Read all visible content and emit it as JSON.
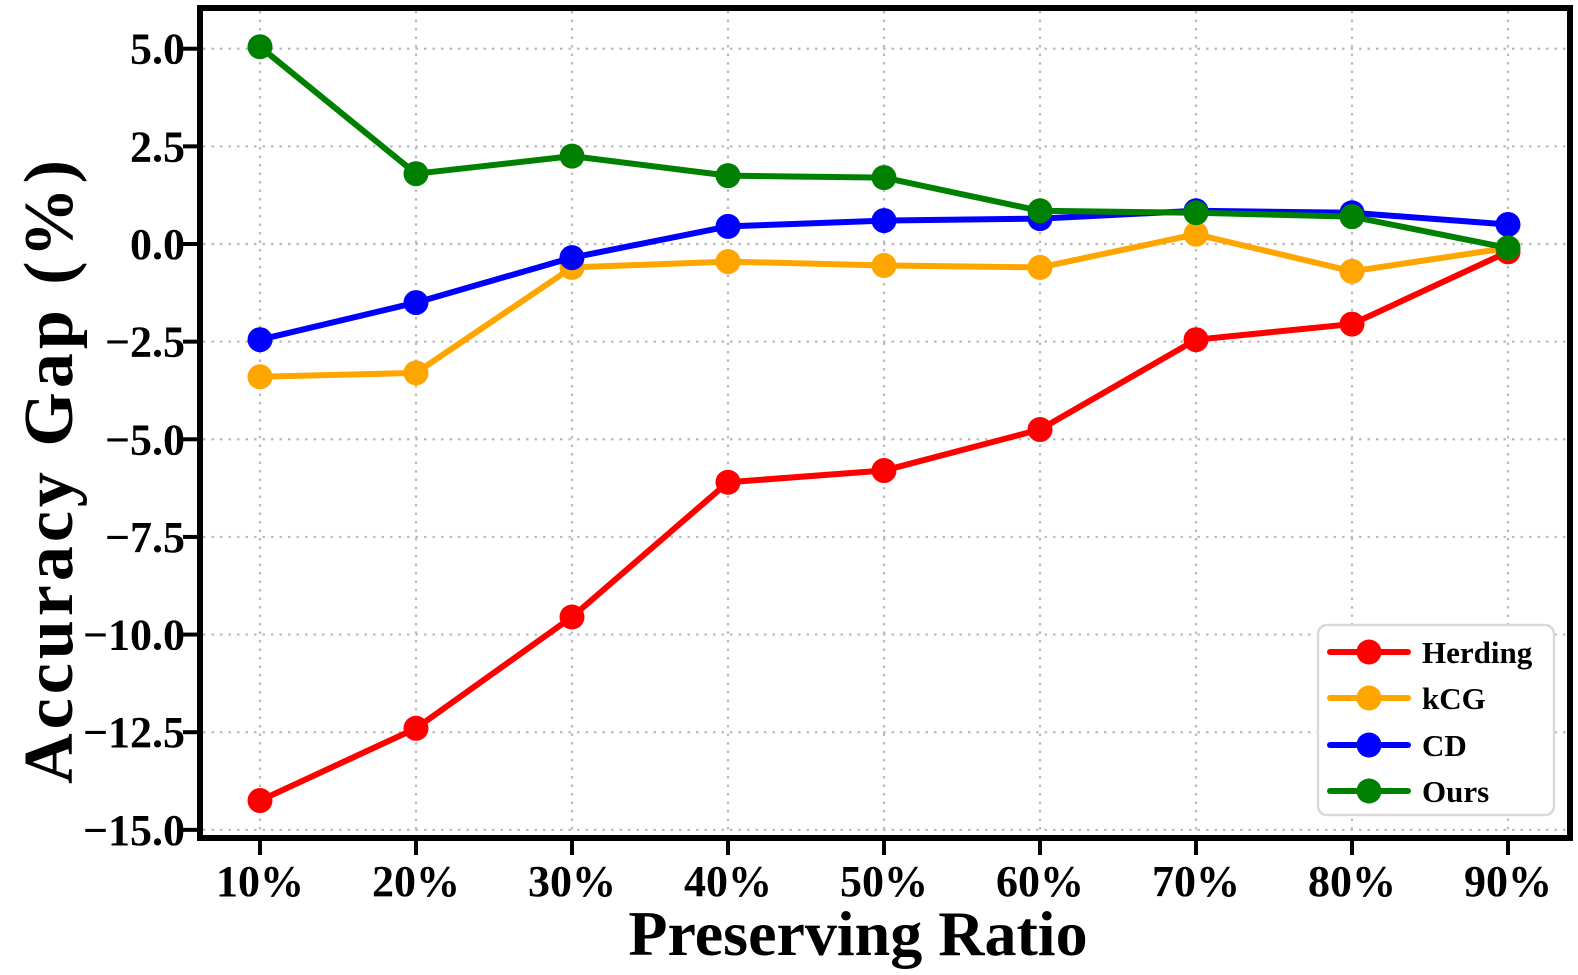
{
  "chart_data": {
    "type": "line",
    "title": "",
    "xlabel": "Preserving Ratio",
    "ylabel": "Accuracy Gap (%)",
    "categories": [
      "10%",
      "20%",
      "30%",
      "40%",
      "50%",
      "60%",
      "70%",
      "80%",
      "90%"
    ],
    "yticks": [
      5.0,
      2.5,
      0.0,
      -2.5,
      -5.0,
      -7.5,
      -10.0,
      -12.5,
      -15.0
    ],
    "ytick_labels": [
      "5.0",
      "2.5",
      "0.0",
      "−2.5",
      "−5.0",
      "−7.5",
      "−10.0",
      "−12.5",
      "−15.0"
    ],
    "ylim": [
      -15.2,
      6.05
    ],
    "grid": true,
    "grid_style": "dotted",
    "legend_position": "lower right",
    "series": [
      {
        "name": "Herding",
        "color": "#ff0000",
        "values": [
          -14.25,
          -12.4,
          -9.55,
          -6.1,
          -5.8,
          -4.75,
          -2.45,
          -2.05,
          -0.2
        ]
      },
      {
        "name": "kCG",
        "color": "#ffa500",
        "values": [
          -3.4,
          -3.3,
          -0.6,
          -0.45,
          -0.55,
          -0.6,
          0.25,
          -0.7,
          -0.1
        ]
      },
      {
        "name": "CD",
        "color": "#0000ff",
        "values": [
          -2.45,
          -1.5,
          -0.35,
          0.45,
          0.6,
          0.65,
          0.85,
          0.8,
          0.5
        ]
      },
      {
        "name": "Ours",
        "color": "#008000",
        "values": [
          5.05,
          1.8,
          2.25,
          1.75,
          1.7,
          0.85,
          0.8,
          0.7,
          -0.1
        ]
      }
    ]
  },
  "colors": {
    "background": "#ffffff",
    "axis": "#000000",
    "grid": "#bbbbbb",
    "legend_border": "#d9d9d9",
    "text": "#000000"
  }
}
